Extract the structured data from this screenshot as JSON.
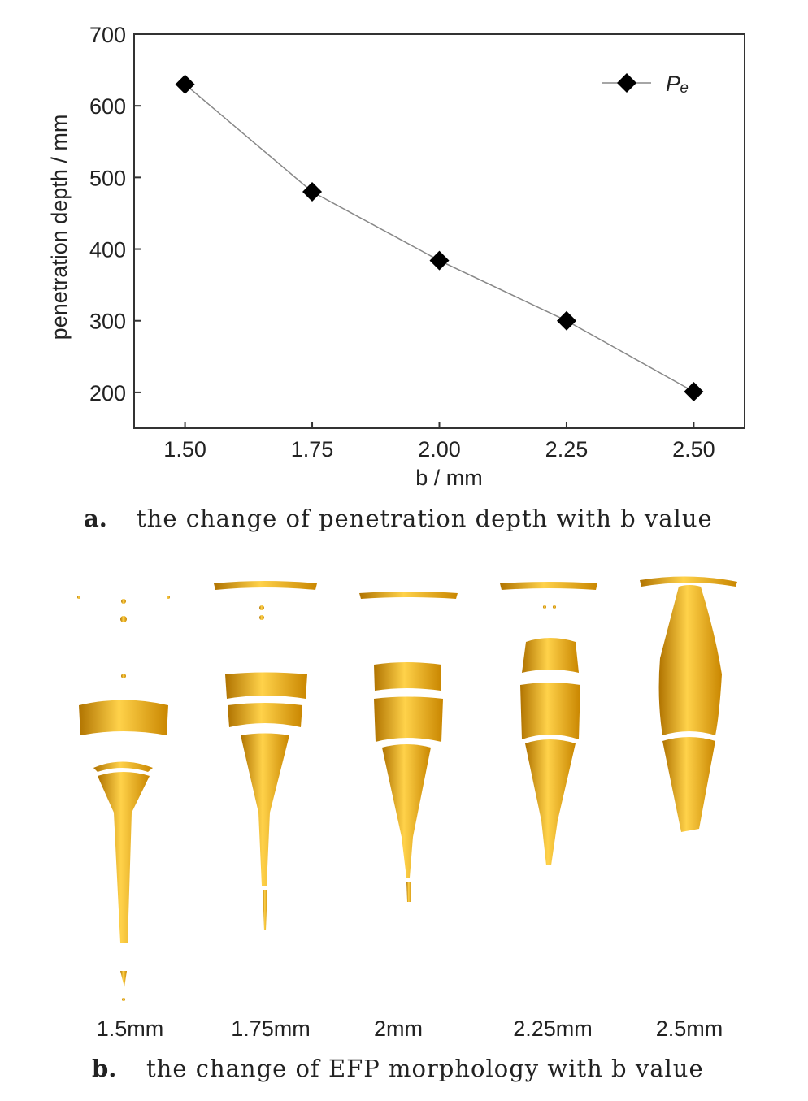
{
  "chart_data": {
    "type": "line",
    "xlabel": "b / mm",
    "ylabel": "penetration depth / mm",
    "x": [
      1.5,
      1.75,
      2.0,
      2.25,
      2.5
    ],
    "series": [
      {
        "name": "Pₑ",
        "color": "#000000",
        "line_color": "#888888",
        "marker": "diamond",
        "values": [
          630,
          480,
          384,
          300,
          201
        ]
      }
    ],
    "xlim": [
      1.4,
      2.6
    ],
    "xticks": [
      {
        "value": 1.5,
        "label": "1.50"
      },
      {
        "value": 1.75,
        "label": "1.75"
      },
      {
        "value": 2.0,
        "label": "2.00"
      },
      {
        "value": 2.25,
        "label": "2.25"
      },
      {
        "value": 2.5,
        "label": "2.50"
      }
    ],
    "ylim": [
      150,
      700
    ],
    "yticks": [
      200,
      300,
      400,
      500,
      600,
      700
    ],
    "grid": false,
    "legend": "upper right"
  },
  "figure_b": {
    "labels": [
      "1.5mm",
      "1.75mm",
      "2mm",
      "2.25mm",
      "2.5mm"
    ]
  },
  "captions": [
    {
      "label": "a.",
      "text": "the change of penetration depth with b value"
    },
    {
      "label": "b.",
      "text": "the change of EFP morphology with b value"
    }
  ]
}
